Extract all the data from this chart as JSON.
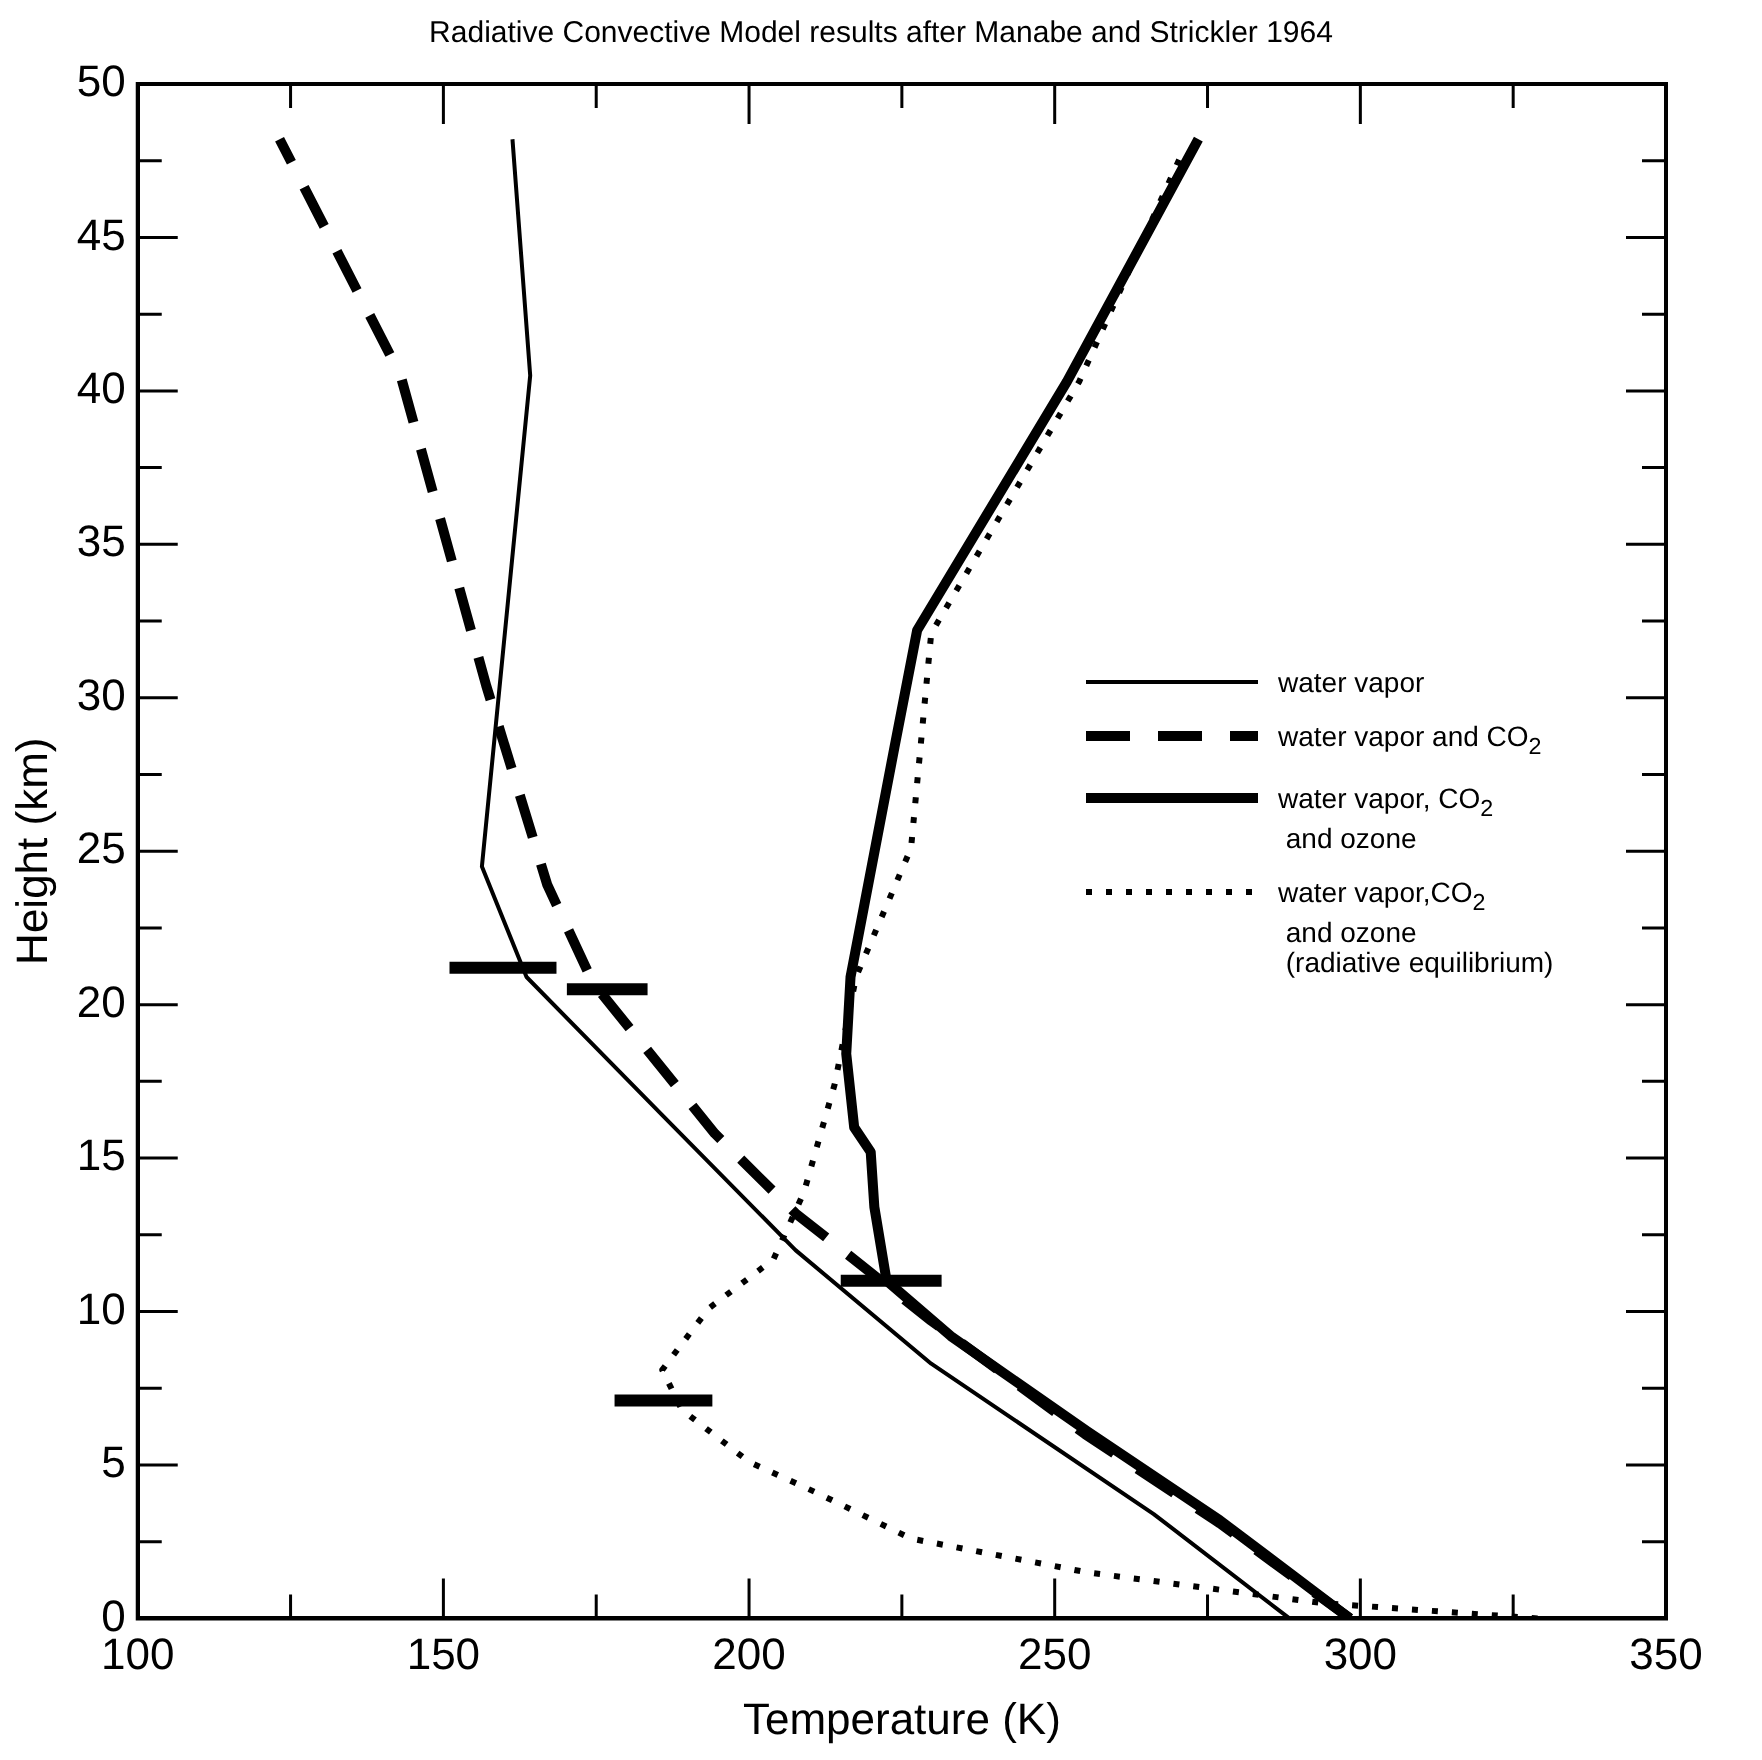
{
  "chart_data": {
    "type": "line",
    "title": "Radiative Convective Model results after Manabe and Strickler 1964",
    "xlabel": "Temperature (K)",
    "ylabel": "Height (km)",
    "xlim": [
      100,
      350
    ],
    "ylim": [
      0,
      50
    ],
    "xticks": [
      100,
      {
        "value": 125,
        "label": null
      },
      150,
      {
        "value": 175,
        "label": null
      },
      200,
      {
        "value": 225,
        "label": null
      },
      250,
      {
        "value": 275,
        "label": null
      },
      300,
      {
        "value": 325,
        "label": null
      },
      350
    ],
    "yticks": [
      0,
      {
        "value": 2.5,
        "label": null
      },
      5,
      {
        "value": 7.5,
        "label": null
      },
      10,
      {
        "value": 12.5,
        "label": null
      },
      15,
      {
        "value": 17.5,
        "label": null
      },
      20,
      {
        "value": 22.5,
        "label": null
      },
      25,
      {
        "value": 27.5,
        "label": null
      },
      30,
      {
        "value": 32.5,
        "label": null
      },
      35,
      {
        "value": 37.5,
        "label": null
      },
      40,
      {
        "value": 42.5,
        "label": null
      },
      45,
      {
        "value": 47.5,
        "label": null
      },
      50
    ],
    "grid": false,
    "legend": "right",
    "marker": "none",
    "series": [
      {
        "name": "water vapor",
        "color": "#000000",
        "line_style": "solid",
        "x": [
          288.4,
          266.2,
          229.8,
          207.6,
          185.8,
          163.6,
          156.3,
          164.2,
          161.3
        ],
        "values": [
          0,
          3.4,
          8.3,
          12.0,
          16.4,
          20.9,
          24.5,
          40.5,
          48.2
        ]
      },
      {
        "name": "water vapor and CO$_{2}$",
        "color": "#000000",
        "line_style": "dashed",
        "x": [
          298.3,
          277,
          255,
          229.8,
          214,
          207.6,
          194.4,
          174.5,
          167,
          157,
          143,
          123.2
        ],
        "values": [
          0,
          3.1,
          6.0,
          9.7,
          12.2,
          13.2,
          15.8,
          20.7,
          23.9,
          30.4,
          40.5,
          48.2
        ]
      },
      {
        "name": "water vapor, CO$_{2}$\n and ozone",
        "color": "#000000",
        "line_style": "solid",
        "x": [
          298.3,
          277,
          255.3,
          233,
          222.5,
          220.5,
          219.9,
          217.2,
          215.9,
          216.6,
          223.8,
          227.5,
          252,
          273.5
        ],
        "values": [
          0,
          3.2,
          6.1,
          9.2,
          11.0,
          13.4,
          15.2,
          16.0,
          18.4,
          20.9,
          28.4,
          32.2,
          40.3,
          48.2
        ]
      },
      {
        "name": "water vapor,CO$_{2}$\n and ozone\n (radiative equilibrium)",
        "color": "#000000",
        "line_style": "dotted",
        "x": [
          329,
          293.7,
          255.3,
          226.5,
          211,
          200,
          189,
          185.8,
          193.4,
          204,
          209,
          214,
          217.5,
          226.5,
          229.8,
          254,
          270.5
        ],
        "values": [
          0,
          0.5,
          1.5,
          2.6,
          4.1,
          5.1,
          6.8,
          8.1,
          10.1,
          11.7,
          13.9,
          17.4,
          20.9,
          25.1,
          32.1,
          40.3,
          47.6
        ]
      },
      {
        "color": "#000000",
        "line_style": "solid",
        "x": [
          151,
          168.5
        ],
        "values": [
          21.2,
          21.2
        ]
      },
      {
        "color": "#000000",
        "line_style": "solid",
        "x": [
          170.2,
          183.4
        ],
        "values": [
          20.5,
          20.5
        ]
      },
      {
        "color": "#000000",
        "line_style": "solid",
        "x": [
          215,
          231.5
        ],
        "values": [
          11.0,
          11.0
        ]
      },
      {
        "color": "#000000",
        "line_style": "solid",
        "x": [
          178,
          194
        ],
        "values": [
          7.1,
          7.1
        ]
      }
    ]
  }
}
